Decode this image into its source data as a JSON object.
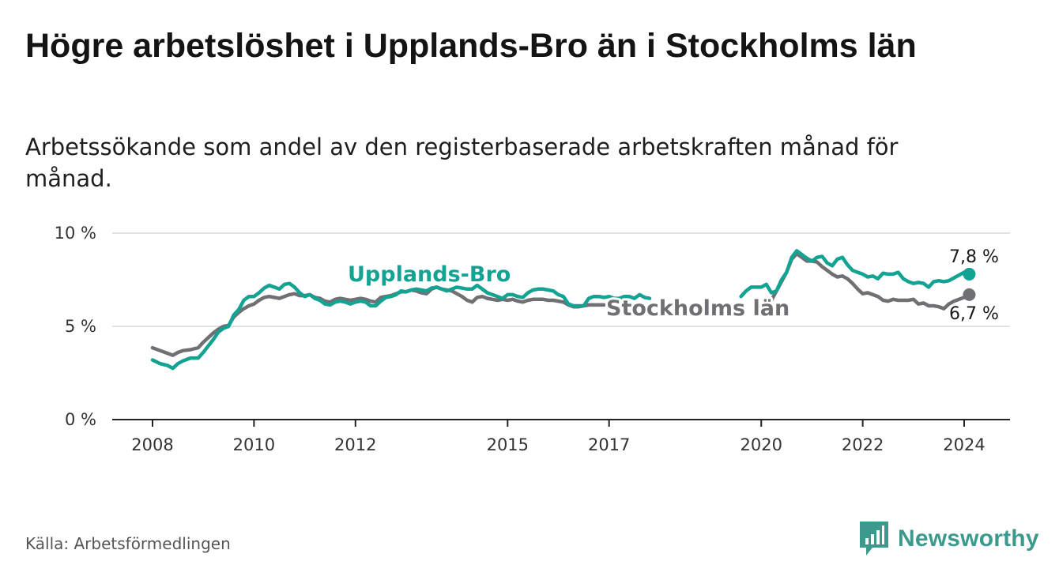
{
  "header": {
    "title": "Högre arbetslöshet i Upplands-Bro än i Stockholms län",
    "subtitle": "Arbetssökande som andel av den registerbaserade arbetskraften månad för månad."
  },
  "footer": {
    "source": "Källa: Arbetsförmedlingen",
    "brand": "Newsworthy"
  },
  "colors": {
    "upplands": "#12a393",
    "stockholm": "#706f73",
    "grid": "#d9d9d9",
    "axis": "#222222",
    "brand": "#3c9a8c"
  },
  "chart_data": {
    "type": "line",
    "title": "Högre arbetslöshet i Upplands-Bro än i Stockholms län",
    "subtitle": "Arbetssökande som andel av den registerbaserade arbetskraften månad för månad.",
    "xlabel": "",
    "ylabel": "",
    "xlim": [
      2008,
      2024.7
    ],
    "ylim": [
      0,
      10
    ],
    "y_ticks": [
      0,
      5,
      10
    ],
    "y_tick_labels": [
      "0 %",
      "5 %",
      "10 %"
    ],
    "x_ticks": [
      2008,
      2010,
      2012,
      2015,
      2017,
      2020,
      2022,
      2024
    ],
    "x_tick_labels": [
      "2008",
      "2010",
      "2012",
      "2015",
      "2017",
      "2020",
      "2022",
      "2024"
    ],
    "grid": true,
    "series": [
      {
        "name": "Upplands-Bro",
        "label": "Upplands-Bro",
        "color": "#12a393",
        "end_label": "7,8 %",
        "segments": [
          {
            "x": [
              2008.0,
              2008.15,
              2008.3,
              2008.4,
              2008.5,
              2008.6,
              2008.75,
              2008.9,
              2009.0,
              2009.1,
              2009.2,
              2009.3,
              2009.4,
              2009.5,
              2009.6,
              2009.7,
              2009.8,
              2009.9,
              2010.0,
              2010.1,
              2010.2,
              2010.3,
              2010.4,
              2010.5,
              2010.6,
              2010.7,
              2010.8,
              2010.9,
              2011.0,
              2011.1,
              2011.2,
              2011.3,
              2011.4,
              2011.5,
              2011.6,
              2011.7,
              2011.8,
              2011.9,
              2012.0,
              2012.1,
              2012.2,
              2012.3,
              2012.4,
              2012.5,
              2012.6,
              2012.7,
              2012.8,
              2012.9,
              2013.0,
              2013.1,
              2013.2,
              2013.3,
              2013.4,
              2013.5,
              2013.6,
              2013.7,
              2013.8,
              2013.9,
              2014.0,
              2014.1,
              2014.2,
              2014.3,
              2014.4,
              2014.5,
              2014.6,
              2014.7,
              2014.8,
              2014.9,
              2015.0,
              2015.1,
              2015.2,
              2015.3,
              2015.4,
              2015.5,
              2015.6,
              2015.7,
              2015.8,
              2015.9,
              2016.0,
              2016.1,
              2016.2,
              2016.3,
              2016.4,
              2016.5,
              2016.6,
              2016.7,
              2016.8,
              2016.9,
              2017.0,
              2017.1,
              2017.2,
              2017.3,
              2017.4,
              2017.5,
              2017.6,
              2017.7,
              2017.8
            ],
            "y": [
              3.2,
              3.0,
              2.9,
              2.75,
              3.0,
              3.15,
              3.3,
              3.3,
              3.6,
              3.95,
              4.3,
              4.7,
              4.9,
              5.0,
              5.6,
              5.9,
              6.4,
              6.6,
              6.6,
              6.8,
              7.05,
              7.2,
              7.1,
              7.0,
              7.25,
              7.3,
              7.1,
              6.8,
              6.6,
              6.7,
              6.5,
              6.4,
              6.2,
              6.15,
              6.3,
              6.35,
              6.3,
              6.2,
              6.3,
              6.35,
              6.3,
              6.1,
              6.1,
              6.35,
              6.55,
              6.6,
              6.7,
              6.9,
              6.85,
              6.95,
              7.0,
              6.95,
              6.9,
              7.05,
              7.1,
              7.0,
              6.9,
              7.0,
              7.1,
              7.05,
              7.0,
              7.0,
              7.2,
              7.0,
              6.8,
              6.7,
              6.6,
              6.5,
              6.7,
              6.7,
              6.6,
              6.55,
              6.8,
              6.95,
              7.0,
              7.0,
              6.95,
              6.9,
              6.7,
              6.6,
              6.2,
              6.1,
              6.1,
              6.1,
              6.5,
              6.6,
              6.6,
              6.55,
              6.6,
              6.5,
              6.5,
              6.6,
              6.6,
              6.5,
              6.7,
              6.55,
              6.5
            ]
          },
          {
            "x": [
              2019.6,
              2019.7,
              2019.8,
              2019.9,
              2020.0,
              2020.1,
              2020.2,
              2020.3,
              2020.4,
              2020.5,
              2020.6,
              2020.7,
              2020.8,
              2020.9,
              2021.0,
              2021.1,
              2021.2,
              2021.3,
              2021.4,
              2021.5,
              2021.6,
              2021.7,
              2021.8,
              2021.9,
              2022.0,
              2022.1,
              2022.2,
              2022.3,
              2022.4,
              2022.5,
              2022.6,
              2022.7,
              2022.8,
              2022.9,
              2023.0,
              2023.1,
              2023.2,
              2023.3,
              2023.4,
              2023.5,
              2023.6,
              2023.7,
              2023.8,
              2023.9,
              2024.0,
              2024.1
            ],
            "y": [
              6.6,
              6.9,
              7.1,
              7.1,
              7.1,
              7.25,
              6.8,
              6.9,
              7.5,
              7.9,
              8.7,
              9.05,
              8.85,
              8.65,
              8.5,
              8.7,
              8.75,
              8.4,
              8.25,
              8.6,
              8.7,
              8.3,
              8.0,
              7.9,
              7.8,
              7.65,
              7.7,
              7.55,
              7.85,
              7.8,
              7.8,
              7.9,
              7.55,
              7.4,
              7.3,
              7.35,
              7.3,
              7.1,
              7.4,
              7.45,
              7.4,
              7.45,
              7.6,
              7.75,
              7.9,
              7.8
            ]
          }
        ]
      },
      {
        "name": "Stockholms län",
        "label": "Stockholms län",
        "color": "#706f73",
        "end_label": "6,7 %",
        "segments": [
          {
            "x": [
              2008.0,
              2008.15,
              2008.3,
              2008.4,
              2008.5,
              2008.6,
              2008.75,
              2008.9,
              2009.0,
              2009.1,
              2009.2,
              2009.3,
              2009.4,
              2009.5,
              2009.6,
              2009.7,
              2009.8,
              2009.9,
              2010.0,
              2010.1,
              2010.2,
              2010.3,
              2010.4,
              2010.5,
              2010.6,
              2010.7,
              2010.8,
              2010.9,
              2011.0,
              2011.1,
              2011.2,
              2011.3,
              2011.4,
              2011.5,
              2011.6,
              2011.7,
              2011.8,
              2011.9,
              2012.0,
              2012.1,
              2012.2,
              2012.3,
              2012.4,
              2012.5,
              2012.6,
              2012.7,
              2012.8,
              2012.9,
              2013.0,
              2013.1,
              2013.2,
              2013.3,
              2013.4,
              2013.5,
              2013.6,
              2013.7,
              2013.8,
              2013.9,
              2014.0,
              2014.1,
              2014.2,
              2014.3,
              2014.4,
              2014.5,
              2014.6,
              2014.7,
              2014.8,
              2014.9,
              2015.0,
              2015.1,
              2015.2,
              2015.3,
              2015.4,
              2015.5,
              2015.6,
              2015.7,
              2015.8,
              2015.9,
              2016.0,
              2016.1,
              2016.2,
              2016.3,
              2016.4,
              2016.5,
              2016.6,
              2016.7,
              2016.8,
              2016.9
            ],
            "y": [
              3.85,
              3.7,
              3.55,
              3.45,
              3.6,
              3.7,
              3.75,
              3.85,
              4.15,
              4.4,
              4.65,
              4.85,
              5.0,
              5.05,
              5.5,
              5.75,
              5.95,
              6.1,
              6.2,
              6.4,
              6.55,
              6.6,
              6.55,
              6.5,
              6.6,
              6.7,
              6.75,
              6.65,
              6.65,
              6.7,
              6.55,
              6.5,
              6.35,
              6.3,
              6.45,
              6.5,
              6.45,
              6.4,
              6.45,
              6.5,
              6.45,
              6.35,
              6.3,
              6.55,
              6.6,
              6.65,
              6.75,
              6.85,
              6.85,
              6.95,
              6.9,
              6.8,
              6.75,
              7.0,
              7.1,
              7.0,
              6.95,
              6.9,
              6.75,
              6.6,
              6.4,
              6.3,
              6.55,
              6.6,
              6.5,
              6.45,
              6.4,
              6.45,
              6.4,
              6.45,
              6.35,
              6.3,
              6.4,
              6.45,
              6.45,
              6.45,
              6.4,
              6.4,
              6.35,
              6.3,
              6.15,
              6.05,
              6.05,
              6.1,
              6.15,
              6.15,
              6.15,
              6.15
            ]
          },
          {
            "x": [
              2020.2,
              2020.3,
              2020.4,
              2020.5,
              2020.6,
              2020.7,
              2020.8,
              2020.9,
              2021.0,
              2021.1,
              2021.2,
              2021.3,
              2021.4,
              2021.5,
              2021.6,
              2021.7,
              2021.8,
              2021.9,
              2022.0,
              2022.1,
              2022.2,
              2022.3,
              2022.4,
              2022.5,
              2022.6,
              2022.7,
              2022.8,
              2022.9,
              2023.0,
              2023.1,
              2023.2,
              2023.3,
              2023.4,
              2023.5,
              2023.6,
              2023.7,
              2023.8,
              2023.9,
              2024.0,
              2024.1
            ],
            "y": [
              6.4,
              6.9,
              7.4,
              7.9,
              8.6,
              8.9,
              8.7,
              8.5,
              8.5,
              8.45,
              8.2,
              8.0,
              7.8,
              7.65,
              7.7,
              7.55,
              7.3,
              7.0,
              6.75,
              6.8,
              6.7,
              6.6,
              6.4,
              6.35,
              6.45,
              6.4,
              6.4,
              6.4,
              6.45,
              6.2,
              6.25,
              6.1,
              6.1,
              6.05,
              5.95,
              6.2,
              6.35,
              6.45,
              6.55,
              6.7
            ]
          }
        ]
      }
    ]
  }
}
